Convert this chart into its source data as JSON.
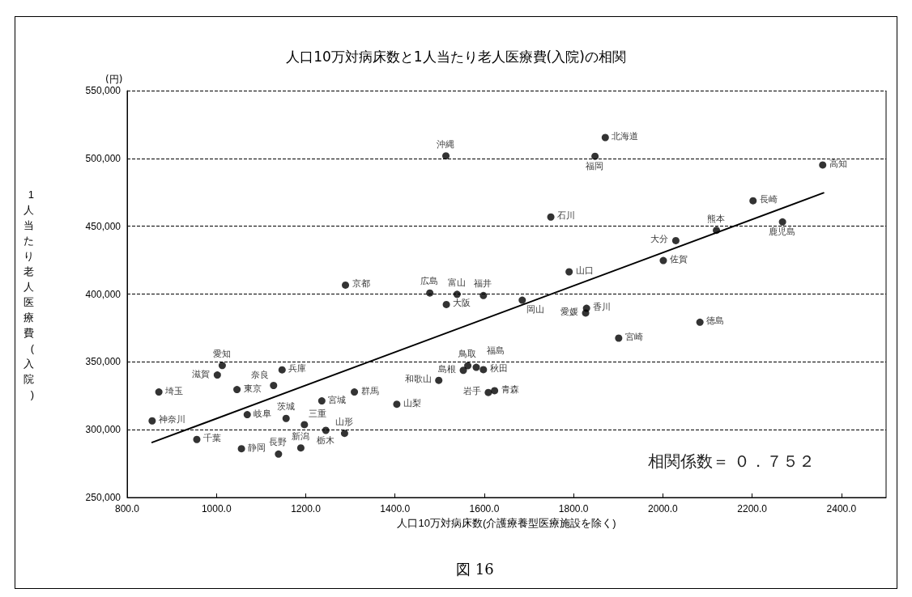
{
  "chart_data": {
    "type": "scatter",
    "title": "人口10万対病床数と1人当たり老人医療費(入院)の相関",
    "xlabel": "人口10万対病床数(介護療養型医療施設を除く)",
    "ylabel": "1人当たり老人医療費(入院)",
    "annotations": [
      "(円)",
      "相関係数＝ ０．７５２",
      "図 16"
    ],
    "xlim": [
      800,
      2500
    ],
    "xticks": [
      {
        "value": 800,
        "label": "800.0"
      },
      {
        "value": 1000,
        "label": "1000.0"
      },
      {
        "value": 1200,
        "label": "1200.0"
      },
      {
        "value": 1400,
        "label": "1400.0"
      },
      {
        "value": 1600,
        "label": "1600.0"
      },
      {
        "value": 1800,
        "label": "1800.0"
      },
      {
        "value": 2000,
        "label": "2000.0"
      },
      {
        "value": 2200,
        "label": "2200.0"
      },
      {
        "value": 2400,
        "label": "2400.0"
      }
    ],
    "ylim": [
      250000,
      550000
    ],
    "yticks": [
      {
        "value": 250000,
        "label": "250,000"
      },
      {
        "value": 300000,
        "label": "300,000"
      },
      {
        "value": 350000,
        "label": "350,000"
      },
      {
        "value": 400000,
        "label": "400,000"
      },
      {
        "value": 450000,
        "label": "450,000"
      },
      {
        "value": 500000,
        "label": "500,000"
      },
      {
        "value": 550000,
        "label": "550,000"
      }
    ],
    "grid": "y",
    "marker": "circle",
    "series": [
      {
        "color": "#000000",
        "x": [
          1515,
          1013,
          1002,
          871,
          1046,
          1128,
          1147,
          856,
          1069,
          1156,
          1236,
          1197,
          1245,
          1287,
          1309,
          1404,
          956,
          1056,
          1139,
          1189,
          1514,
          1871,
          1848,
          2358,
          2202,
          1749,
          2120,
          2268,
          2029,
          2001,
          1790,
          1478,
          1539,
          1598,
          1685,
          1829,
          1827,
          2083,
          1901,
          1563,
          1553,
          1582,
          1598,
          1498,
          1623,
          1609,
          1289
        ],
        "values": [
          392300,
          347300,
          340300,
          327800,
          329600,
          332600,
          344100,
          306500,
          311100,
          308300,
          321200,
          303700,
          299500,
          297300,
          327800,
          318800,
          292800,
          286000,
          282000,
          286600,
          501900,
          515400,
          501600,
          495200,
          468800,
          456800,
          447000,
          453200,
          439400,
          424700,
          416400,
          400800,
          399800,
          398900,
          395500,
          389500,
          386000,
          379200,
          367500,
          347200,
          343800,
          346000,
          344300,
          336400,
          328800,
          327400,
          406600
        ],
        "value_labels": [
          "大阪",
          "愛知",
          "滋賀",
          "埼玉",
          "東京",
          "奈良",
          "兵庫",
          "神奈川",
          "岐阜",
          "茨城",
          "宮城",
          "三重",
          "栃木",
          "山形",
          "群馬",
          "山梨",
          "千葉",
          "静岡",
          "長野",
          "新潟",
          "沖縄",
          "北海道",
          "福岡",
          "高知",
          "長崎",
          "石川",
          "熊本",
          "鹿児島",
          "大分",
          "佐賀",
          "山口",
          "広島",
          "富山",
          "福井",
          "岡山",
          "香川",
          "愛媛",
          "徳島",
          "宮崎",
          "鳥取",
          "島根",
          "福島",
          "秋田",
          "和歌山",
          "青森",
          "岩手",
          "京都"
        ]
      },
      {
        "type": "line",
        "color": "#000000",
        "marker": "none",
        "line_style": "solid",
        "x": [
          856,
          2360
        ],
        "values": [
          290600,
          474600
        ]
      }
    ]
  }
}
